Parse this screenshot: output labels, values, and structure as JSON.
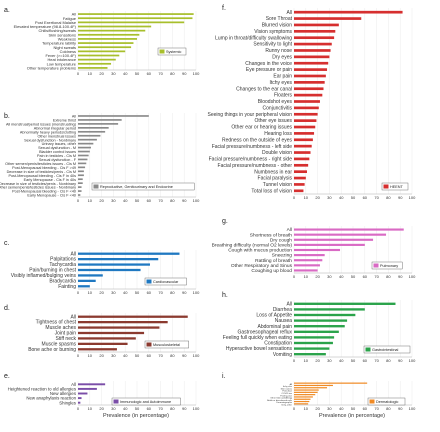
{
  "x_axis_label": "Prevalence (in percentage)",
  "chart_data": [
    {
      "type": "bar",
      "panel_letter": "a.",
      "legend_label": "Systemic",
      "color": "#a8bf2c",
      "xlim": [
        0,
        100
      ],
      "xticks": [
        0,
        10,
        20,
        30,
        40,
        50,
        60,
        70,
        80,
        90,
        100
      ],
      "categories": [
        "All",
        "Fatigue",
        "Post Exertional Malaise",
        "Elevated temperature (98.8-100.4F)",
        "Chills/flushing/sweats",
        "Skin sensations",
        "Weakness",
        "Temperature lability",
        "Night sweats",
        "Coldness",
        "Fever (>=100.4F)",
        "Heat intolerance",
        "Low temperature",
        "Other temperature problems"
      ],
      "values": [
        98,
        97,
        90,
        62,
        57,
        52,
        50,
        47,
        45,
        40,
        35,
        32,
        28,
        25
      ]
    },
    {
      "type": "bar",
      "panel_letter": "b.",
      "legend_label": "Reproductive, Genitourinary and Endocrine",
      "color": "#8a8a8a",
      "xlim": [
        0,
        100
      ],
      "xticks": [
        0,
        10,
        20,
        30,
        40,
        50,
        60,
        70,
        80,
        90,
        100
      ],
      "categories": [
        "All",
        "Extreme thirst",
        "All menstrual/period issues (menstruating)",
        "Abnormal irregular period",
        "Abnormally heavy periods/clotting",
        "Other menstrual issues",
        "Sexual dysfunction - Nonbinary",
        "Urinary issues, other",
        "Sexual dysfunction - M",
        "Bladder control issues",
        "Pain in testicles - Cis M",
        "Sexual dysfunction - F",
        "Other semen/penis/testicles issues - Cis M",
        "Post-Menopausal bleeding - Cis F >49",
        "Decrease in size of testicles/penis - Cis M",
        "Post-Menopausal bleeding - Cis F in 40s",
        "Early Menopause - Cis F in 40s",
        "Decrease in size of testicles/penis - Nonbinary",
        "Other semen/penis/testicles issues - Nonbinary",
        "Post-Menopausal bleeding - Cis F <40",
        "Early Menopause - Cis F <40"
      ],
      "values": [
        60,
        37,
        34,
        26,
        23,
        19,
        16,
        13,
        11,
        10,
        9,
        8,
        7,
        6,
        5,
        5,
        4,
        4,
        3,
        3,
        2
      ]
    },
    {
      "type": "bar",
      "panel_letter": "c.",
      "legend_label": "Cardiovascular",
      "color": "#1f78c1",
      "xlim": [
        0,
        100
      ],
      "xticks": [
        0,
        10,
        20,
        30,
        40,
        50,
        60,
        70,
        80,
        90,
        100
      ],
      "categories": [
        "All",
        "Palpitations",
        "Tachycardia",
        "Pain/burning in chest",
        "Visibly inflamed/bulging veins",
        "Bradycardia",
        "Fainting"
      ],
      "values": [
        86,
        68,
        61,
        53,
        21,
        15,
        10
      ]
    },
    {
      "type": "bar",
      "panel_letter": "d.",
      "legend_label": "Musculoskeletal",
      "color": "#8b3a2f",
      "xlim": [
        0,
        100
      ],
      "xticks": [
        0,
        10,
        20,
        30,
        40,
        50,
        60,
        70,
        80,
        90,
        100
      ],
      "categories": [
        "All",
        "Tightness of chest",
        "Muscle aches",
        "Joint pain",
        "Stiff neck",
        "Muscle spasms",
        "Bone ache or burning"
      ],
      "values": [
        93,
        76,
        69,
        56,
        49,
        42,
        33
      ]
    },
    {
      "type": "bar",
      "panel_letter": "e.",
      "legend_label": "Immunologic and Autoimmune",
      "color": "#7b4ea8",
      "xlim": [
        0,
        100
      ],
      "xticks": [
        0,
        10,
        20,
        30,
        40,
        50,
        60,
        70,
        80,
        90,
        100
      ],
      "categories": [
        "All",
        "Heightened reaction to old allergies",
        "New allergies",
        "New anaphylaxis reaction",
        "Shingles"
      ],
      "values": [
        23,
        16,
        8,
        3,
        2
      ]
    },
    {
      "type": "bar",
      "panel_letter": "f.",
      "legend_label": "HEENT",
      "color": "#d62f2f",
      "xlim": [
        0,
        100
      ],
      "xticks": [
        0,
        10,
        20,
        30,
        40,
        50,
        60,
        70,
        80,
        90,
        100
      ],
      "categories": [
        "All",
        "Sore Throat",
        "Blurred vision",
        "Vision symptoms",
        "Lump in throat/difficulty swallowing",
        "Sensitivity to light",
        "Runny nose",
        "Dry eyes",
        "Changes in the voice",
        "Eye pressure or pain",
        "Ear pain",
        "Itchy eyes",
        "Changes to the ear canal",
        "Floaters",
        "Bloodshot eyes",
        "Conjunctivitis",
        "Seeing things in your peripheral vision",
        "Other eye issues",
        "Other ear or hearing issues",
        "Hearing loss",
        "Redness on the outside of eyes",
        "Facial pressure/numbness - left side",
        "Double vision",
        "Facial pressure/numbness - right side",
        "Facial pressure/numbness - other",
        "Numbness in ear",
        "Facial paralysis",
        "Tunnel vision",
        "Total loss of vision"
      ],
      "values": [
        92,
        57,
        38,
        35,
        34,
        32,
        31,
        30,
        29,
        28,
        27,
        26,
        25,
        24,
        22,
        21,
        20,
        19,
        18,
        17,
        16,
        15,
        14,
        13,
        12,
        11,
        10,
        9,
        8
      ]
    },
    {
      "type": "bar",
      "panel_letter": "g.",
      "legend_label": "Pulmonary",
      "color": "#d96ac4",
      "xlim": [
        0,
        100
      ],
      "xticks": [
        0,
        10,
        20,
        30,
        40,
        50,
        60,
        70,
        80,
        90,
        100
      ],
      "categories": [
        "All",
        "Shortness of breath",
        "Dry cough",
        "Breathing difficulty (normal O2 levels)",
        "Cough with mucus production",
        "Sneezing",
        "Rattling of breath",
        "Other Respiratory and Sinus",
        "Coughing up blood"
      ],
      "values": [
        93,
        78,
        67,
        60,
        39,
        26,
        24,
        22,
        20
      ]
    },
    {
      "type": "bar",
      "panel_letter": "h.",
      "legend_label": "Gastrointestinal",
      "color": "#2aa34a",
      "xlim": [
        0,
        100
      ],
      "xticks": [
        0,
        10,
        20,
        30,
        40,
        50,
        60,
        70,
        80,
        90,
        100
      ],
      "categories": [
        "All",
        "Diarrhea",
        "Loss of Appetite",
        "Nausea",
        "Abdominal pain",
        "Gastroesophageal reflux",
        "Feeling full quickly when eating",
        "Constipation",
        "Hyperactive bowel sensations",
        "Vomiting"
      ],
      "values": [
        86,
        60,
        52,
        45,
        43,
        38,
        34,
        33,
        30,
        27
      ]
    },
    {
      "type": "bar",
      "panel_letter": "i.",
      "legend_label": "Dermatologic",
      "color": "#f08a24",
      "xlim": [
        0,
        100
      ],
      "xticks": [
        0,
        10,
        20,
        30,
        40,
        50,
        60,
        70,
        80,
        90,
        100
      ],
      "categories": [
        "All",
        "Itchy skin",
        "Skin rashes",
        "Petechiae",
        "COVID toe",
        "Peeling skin",
        "Other Skin and Allergy",
        "Brittle or discoloured nails",
        "Dermatographia",
        "Itchy, other"
      ],
      "values": [
        62,
        33,
        28,
        21,
        20,
        18,
        16,
        14,
        13,
        12
      ]
    }
  ]
}
